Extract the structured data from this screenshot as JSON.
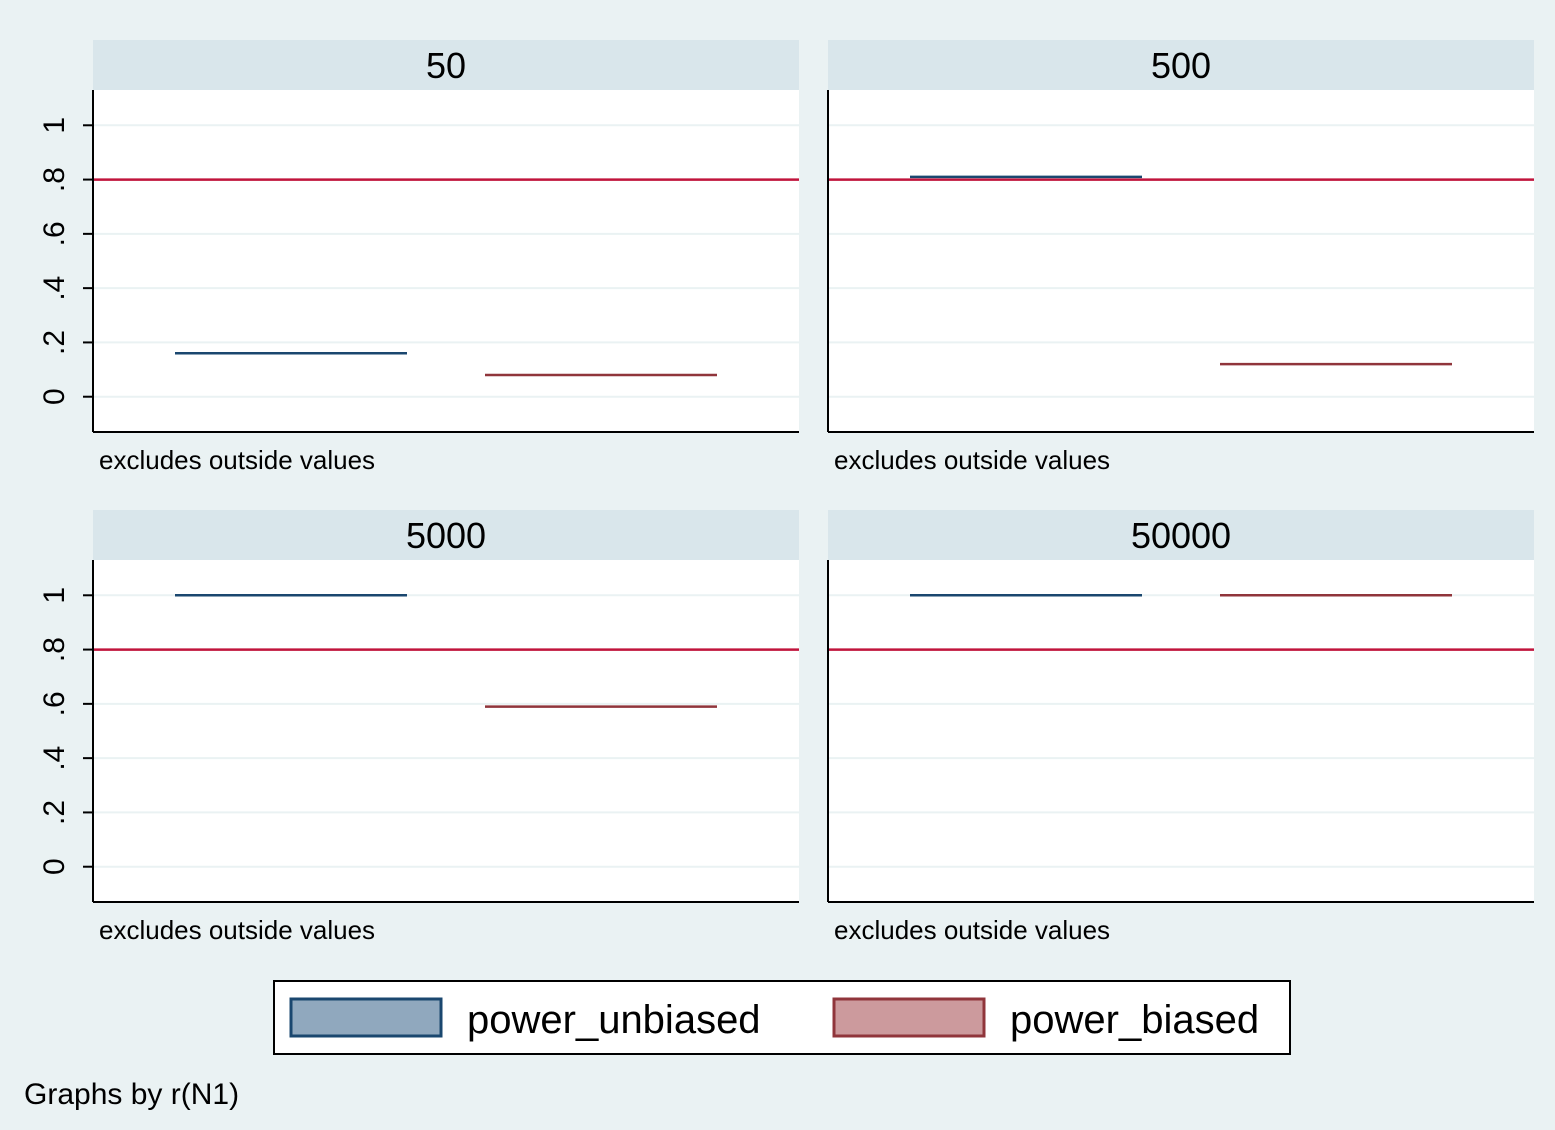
{
  "chart_data": {
    "type": "box",
    "footer": "Graphs by r(N1)",
    "ylim": [
      -0.13,
      1.13
    ],
    "yticks": [
      0,
      0.2,
      0.4,
      0.6,
      0.8,
      1
    ],
    "ytick_labels": [
      "0",
      ".2",
      ".4",
      ".6",
      ".8",
      "1"
    ],
    "reference_line": {
      "y": 0.8,
      "color": "#c0143c"
    },
    "grid": true,
    "legend": {
      "placement": "bottom",
      "entries": [
        {
          "name": "power_unbiased",
          "fill": "#90a8be",
          "stroke": "#1a476f"
        },
        {
          "name": "power_biased",
          "fill": "#cc9a9d",
          "stroke": "#90353b"
        }
      ]
    },
    "panels": [
      {
        "title": "50",
        "note": "excludes outside values",
        "series": [
          {
            "name": "power_unbiased",
            "value": 0.16
          },
          {
            "name": "power_biased",
            "value": 0.08
          }
        ]
      },
      {
        "title": "500",
        "note": "excludes outside values",
        "series": [
          {
            "name": "power_unbiased",
            "value": 0.81
          },
          {
            "name": "power_biased",
            "value": 0.12
          }
        ]
      },
      {
        "title": "5000",
        "note": "excludes outside values",
        "series": [
          {
            "name": "power_unbiased",
            "value": 1.0
          },
          {
            "name": "power_biased",
            "value": 0.59
          }
        ]
      },
      {
        "title": "50000",
        "note": "excludes outside values",
        "series": [
          {
            "name": "power_unbiased",
            "value": 1.0
          },
          {
            "name": "power_biased",
            "value": 1.0
          }
        ]
      }
    ]
  }
}
